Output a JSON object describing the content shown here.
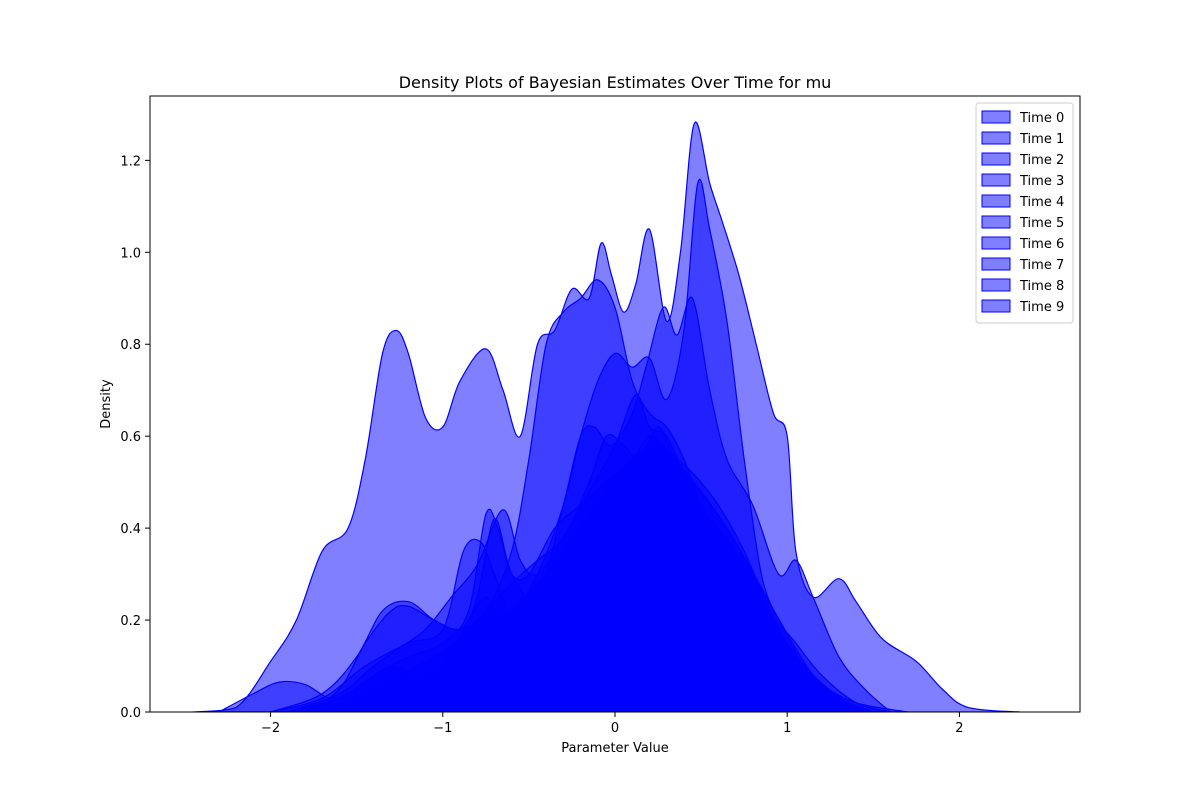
{
  "chart_data": {
    "type": "area",
    "title": "Density Plots of Bayesian Estimates Over Time for mu",
    "xlabel": "Parameter Value",
    "ylabel": "Density",
    "xlim": [
      -2.7,
      2.7
    ],
    "ylim": [
      0,
      1.34
    ],
    "xticks": [
      -2,
      -1,
      0,
      1,
      2
    ],
    "xtick_labels": [
      "−2",
      "−1",
      "0",
      "1",
      "2"
    ],
    "yticks": [
      0.0,
      0.2,
      0.4,
      0.6,
      0.8,
      1.0,
      1.2
    ],
    "ytick_labels": [
      "0.0",
      "0.2",
      "0.4",
      "0.6",
      "0.8",
      "1.0",
      "1.2"
    ],
    "grid": false,
    "legend_position": "top-right",
    "fill_color": "#0000ff",
    "edge_color": "#0000ff",
    "fill_opacity": 0.5,
    "series": [
      {
        "name": "Time 0",
        "points": [
          [
            -2.45,
            0
          ],
          [
            -2.2,
            0.01
          ],
          [
            -2.0,
            0.11
          ],
          [
            -1.85,
            0.2
          ],
          [
            -1.7,
            0.35
          ],
          [
            -1.55,
            0.4
          ],
          [
            -1.45,
            0.55
          ],
          [
            -1.35,
            0.78
          ],
          [
            -1.27,
            0.83
          ],
          [
            -1.2,
            0.78
          ],
          [
            -1.1,
            0.64
          ],
          [
            -1.0,
            0.62
          ],
          [
            -0.9,
            0.72
          ],
          [
            -0.75,
            0.79
          ],
          [
            -0.65,
            0.7
          ],
          [
            -0.55,
            0.6
          ],
          [
            -0.45,
            0.8
          ],
          [
            -0.35,
            0.83
          ],
          [
            -0.25,
            0.92
          ],
          [
            -0.15,
            0.9
          ],
          [
            -0.08,
            1.02
          ],
          [
            -0.02,
            0.95
          ],
          [
            0.05,
            0.87
          ],
          [
            0.12,
            0.93
          ],
          [
            0.2,
            1.05
          ],
          [
            0.3,
            0.85
          ],
          [
            0.38,
            1.0
          ],
          [
            0.46,
            1.28
          ],
          [
            0.55,
            1.15
          ],
          [
            0.62,
            1.07
          ],
          [
            0.72,
            0.95
          ],
          [
            0.82,
            0.8
          ],
          [
            0.92,
            0.65
          ],
          [
            1.0,
            0.6
          ],
          [
            1.05,
            0.35
          ],
          [
            1.15,
            0.25
          ],
          [
            1.3,
            0.29
          ],
          [
            1.4,
            0.24
          ],
          [
            1.55,
            0.16
          ],
          [
            1.75,
            0.11
          ],
          [
            1.9,
            0.05
          ],
          [
            2.05,
            0.01
          ],
          [
            2.35,
            0
          ]
        ]
      },
      {
        "name": "Time 1",
        "points": [
          [
            -2.3,
            0
          ],
          [
            -2.1,
            0.04
          ],
          [
            -1.95,
            0.065
          ],
          [
            -1.8,
            0.06
          ],
          [
            -1.65,
            0.03
          ],
          [
            -1.5,
            0.05
          ],
          [
            -1.3,
            0.1
          ],
          [
            -1.15,
            0.07
          ],
          [
            -1.0,
            0.05
          ],
          [
            -0.85,
            0.08
          ],
          [
            -0.7,
            0.15
          ],
          [
            -0.55,
            0.22
          ],
          [
            -0.4,
            0.3
          ],
          [
            -0.2,
            0.4
          ],
          [
            0.0,
            0.47
          ],
          [
            0.15,
            0.5
          ],
          [
            0.3,
            0.48
          ],
          [
            0.45,
            0.43
          ],
          [
            0.6,
            0.38
          ],
          [
            0.75,
            0.3
          ],
          [
            0.9,
            0.2
          ],
          [
            1.05,
            0.12
          ],
          [
            1.2,
            0.06
          ],
          [
            1.4,
            0.02
          ],
          [
            1.7,
            0
          ]
        ]
      },
      {
        "name": "Time 2",
        "points": [
          [
            -1.8,
            0
          ],
          [
            -1.6,
            0.05
          ],
          [
            -1.45,
            0.15
          ],
          [
            -1.3,
            0.22
          ],
          [
            -1.2,
            0.23
          ],
          [
            -1.05,
            0.2
          ],
          [
            -0.9,
            0.18
          ],
          [
            -0.8,
            0.25
          ],
          [
            -0.7,
            0.42
          ],
          [
            -0.6,
            0.3
          ],
          [
            -0.45,
            0.25
          ],
          [
            -0.3,
            0.45
          ],
          [
            -0.2,
            0.6
          ],
          [
            -0.12,
            0.62
          ],
          [
            -0.02,
            0.58
          ],
          [
            0.1,
            0.65
          ],
          [
            0.18,
            0.75
          ],
          [
            0.28,
            0.88
          ],
          [
            0.36,
            0.82
          ],
          [
            0.45,
            0.9
          ],
          [
            0.55,
            0.7
          ],
          [
            0.65,
            0.55
          ],
          [
            0.8,
            0.45
          ],
          [
            0.95,
            0.3
          ],
          [
            1.05,
            0.33
          ],
          [
            1.15,
            0.25
          ],
          [
            1.3,
            0.12
          ],
          [
            1.45,
            0.05
          ],
          [
            1.6,
            0
          ]
        ]
      },
      {
        "name": "Time 3",
        "points": [
          [
            -2.0,
            0
          ],
          [
            -1.7,
            0.04
          ],
          [
            -1.5,
            0.12
          ],
          [
            -1.35,
            0.22
          ],
          [
            -1.2,
            0.24
          ],
          [
            -1.05,
            0.2
          ],
          [
            -0.9,
            0.18
          ],
          [
            -0.75,
            0.22
          ],
          [
            -0.6,
            0.35
          ],
          [
            -0.5,
            0.55
          ],
          [
            -0.4,
            0.8
          ],
          [
            -0.3,
            0.87
          ],
          [
            -0.2,
            0.9
          ],
          [
            -0.1,
            0.94
          ],
          [
            0.0,
            0.88
          ],
          [
            0.1,
            0.72
          ],
          [
            0.2,
            0.65
          ],
          [
            0.3,
            0.62
          ],
          [
            0.4,
            0.55
          ],
          [
            0.5,
            0.45
          ],
          [
            0.6,
            0.38
          ],
          [
            0.7,
            0.35
          ],
          [
            0.8,
            0.3
          ],
          [
            0.9,
            0.22
          ],
          [
            1.0,
            0.15
          ],
          [
            1.15,
            0.08
          ],
          [
            1.35,
            0.02
          ],
          [
            1.5,
            0
          ]
        ]
      },
      {
        "name": "Time 4",
        "points": [
          [
            -2.0,
            0
          ],
          [
            -1.7,
            0.03
          ],
          [
            -1.45,
            0.1
          ],
          [
            -1.2,
            0.15
          ],
          [
            -1.0,
            0.18
          ],
          [
            -0.88,
            0.35
          ],
          [
            -0.78,
            0.37
          ],
          [
            -0.7,
            0.3
          ],
          [
            -0.6,
            0.22
          ],
          [
            -0.45,
            0.3
          ],
          [
            -0.3,
            0.45
          ],
          [
            -0.2,
            0.6
          ],
          [
            -0.1,
            0.72
          ],
          [
            0.0,
            0.78
          ],
          [
            0.1,
            0.75
          ],
          [
            0.2,
            0.77
          ],
          [
            0.3,
            0.68
          ],
          [
            0.4,
            0.83
          ],
          [
            0.48,
            1.15
          ],
          [
            0.55,
            1.05
          ],
          [
            0.65,
            0.85
          ],
          [
            0.75,
            0.55
          ],
          [
            0.85,
            0.3
          ],
          [
            0.95,
            0.2
          ],
          [
            1.05,
            0.15
          ],
          [
            1.2,
            0.08
          ],
          [
            1.4,
            0.02
          ],
          [
            1.6,
            0
          ]
        ]
      },
      {
        "name": "Time 5",
        "points": [
          [
            -1.9,
            0
          ],
          [
            -1.6,
            0.03
          ],
          [
            -1.4,
            0.08
          ],
          [
            -1.2,
            0.12
          ],
          [
            -1.0,
            0.15
          ],
          [
            -0.85,
            0.22
          ],
          [
            -0.75,
            0.43
          ],
          [
            -0.68,
            0.4
          ],
          [
            -0.6,
            0.3
          ],
          [
            -0.5,
            0.3
          ],
          [
            -0.35,
            0.4
          ],
          [
            -0.2,
            0.45
          ],
          [
            -0.05,
            0.5
          ],
          [
            0.1,
            0.55
          ],
          [
            0.2,
            0.6
          ],
          [
            0.3,
            0.57
          ],
          [
            0.45,
            0.52
          ],
          [
            0.6,
            0.45
          ],
          [
            0.75,
            0.35
          ],
          [
            0.9,
            0.22
          ],
          [
            1.05,
            0.12
          ],
          [
            1.2,
            0.05
          ],
          [
            1.4,
            0
          ]
        ]
      },
      {
        "name": "Time 6",
        "points": [
          [
            -1.9,
            0
          ],
          [
            -1.6,
            0.04
          ],
          [
            -1.4,
            0.1
          ],
          [
            -1.25,
            0.14
          ],
          [
            -1.1,
            0.18
          ],
          [
            -0.95,
            0.25
          ],
          [
            -0.8,
            0.32
          ],
          [
            -0.65,
            0.44
          ],
          [
            -0.55,
            0.33
          ],
          [
            -0.45,
            0.3
          ],
          [
            -0.3,
            0.38
          ],
          [
            -0.15,
            0.48
          ],
          [
            0.0,
            0.58
          ],
          [
            0.12,
            0.69
          ],
          [
            0.2,
            0.62
          ],
          [
            0.3,
            0.6
          ],
          [
            0.42,
            0.5
          ],
          [
            0.55,
            0.42
          ],
          [
            0.7,
            0.35
          ],
          [
            0.85,
            0.25
          ],
          [
            1.0,
            0.15
          ],
          [
            1.15,
            0.07
          ],
          [
            1.35,
            0.02
          ],
          [
            1.5,
            0
          ]
        ]
      },
      {
        "name": "Time 7",
        "points": [
          [
            -1.7,
            0
          ],
          [
            -1.45,
            0.04
          ],
          [
            -1.25,
            0.08
          ],
          [
            -1.05,
            0.12
          ],
          [
            -0.9,
            0.16
          ],
          [
            -0.75,
            0.22
          ],
          [
            -0.6,
            0.28
          ],
          [
            -0.45,
            0.33
          ],
          [
            -0.3,
            0.38
          ],
          [
            -0.15,
            0.5
          ],
          [
            -0.05,
            0.6
          ],
          [
            0.05,
            0.58
          ],
          [
            0.15,
            0.55
          ],
          [
            0.25,
            0.62
          ],
          [
            0.35,
            0.55
          ],
          [
            0.5,
            0.48
          ],
          [
            0.65,
            0.4
          ],
          [
            0.8,
            0.3
          ],
          [
            0.95,
            0.2
          ],
          [
            1.1,
            0.1
          ],
          [
            1.3,
            0.03
          ],
          [
            1.45,
            0
          ]
        ]
      },
      {
        "name": "Time 8",
        "points": [
          [
            -1.7,
            0
          ],
          [
            -1.4,
            0.03
          ],
          [
            -1.2,
            0.06
          ],
          [
            -1.0,
            0.1
          ],
          [
            -0.85,
            0.2
          ],
          [
            -0.75,
            0.25
          ],
          [
            -0.65,
            0.2
          ],
          [
            -0.5,
            0.22
          ],
          [
            -0.35,
            0.3
          ],
          [
            -0.2,
            0.38
          ],
          [
            -0.05,
            0.45
          ],
          [
            0.1,
            0.5
          ],
          [
            0.25,
            0.52
          ],
          [
            0.4,
            0.48
          ],
          [
            0.55,
            0.42
          ],
          [
            0.7,
            0.35
          ],
          [
            0.85,
            0.25
          ],
          [
            1.0,
            0.15
          ],
          [
            1.15,
            0.07
          ],
          [
            1.3,
            0.02
          ],
          [
            1.5,
            0
          ]
        ]
      },
      {
        "name": "Time 9",
        "points": [
          [
            -1.6,
            0
          ],
          [
            -1.35,
            0.03
          ],
          [
            -1.15,
            0.06
          ],
          [
            -0.95,
            0.1
          ],
          [
            -0.8,
            0.15
          ],
          [
            -0.65,
            0.2
          ],
          [
            -0.5,
            0.26
          ],
          [
            -0.35,
            0.32
          ],
          [
            -0.2,
            0.4
          ],
          [
            -0.05,
            0.48
          ],
          [
            0.1,
            0.55
          ],
          [
            0.25,
            0.58
          ],
          [
            0.4,
            0.52
          ],
          [
            0.55,
            0.45
          ],
          [
            0.7,
            0.37
          ],
          [
            0.85,
            0.27
          ],
          [
            1.0,
            0.17
          ],
          [
            1.15,
            0.08
          ],
          [
            1.3,
            0.03
          ],
          [
            1.5,
            0
          ]
        ]
      }
    ]
  }
}
